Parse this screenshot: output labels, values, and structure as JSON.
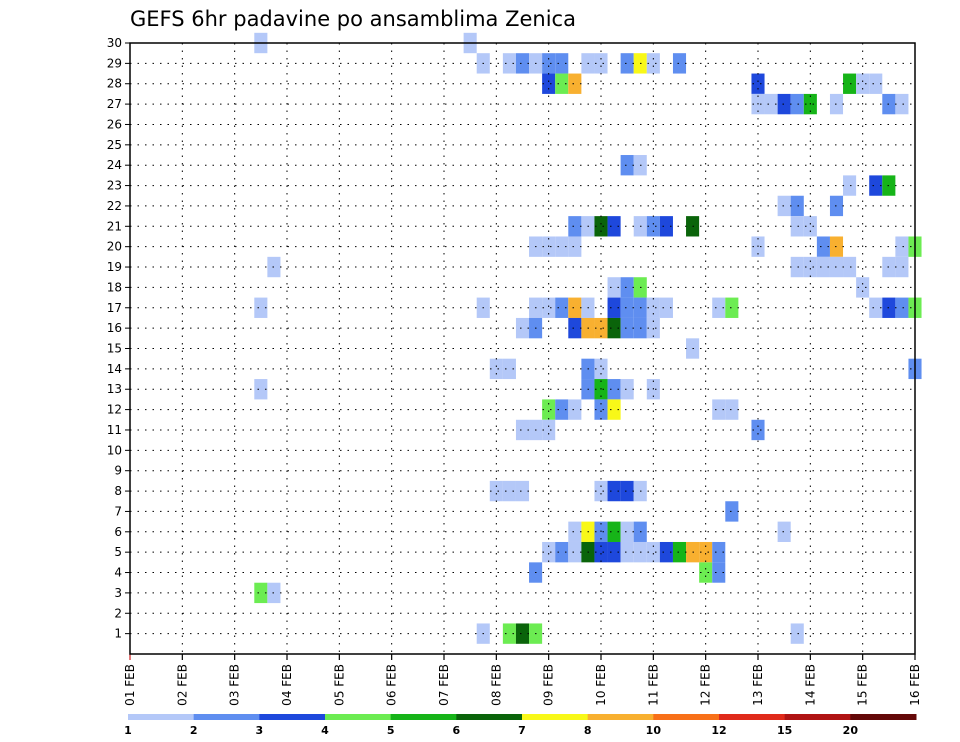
{
  "chart_data": {
    "type": "heatmap",
    "title": "GEFS 6hr padavine po ansamblima Zenica",
    "xlabel": "",
    "ylabel": "",
    "x_tick_labels": [
      "01 FEB",
      "02 FEB",
      "03 FEB",
      "04 FEB",
      "05 FEB",
      "06 FEB",
      "07 FEB",
      "08 FEB",
      "09 FEB",
      "10 FEB",
      "11 FEB",
      "12 FEB",
      "13 FEB",
      "14 FEB",
      "15 FEB",
      "16 FEB"
    ],
    "x_range_days": [
      1,
      16
    ],
    "y_tick_labels": [
      "1",
      "2",
      "3",
      "4",
      "5",
      "6",
      "7",
      "8",
      "9",
      "10",
      "11",
      "12",
      "13",
      "14",
      "15",
      "16",
      "17",
      "18",
      "19",
      "20",
      "21",
      "22",
      "23",
      "24",
      "25",
      "26",
      "27",
      "28",
      "29",
      "30"
    ],
    "y_range_members": [
      0,
      30
    ],
    "grid": true,
    "colorbar": {
      "tick_labels": [
        "1",
        "2",
        "3",
        "4",
        "5",
        "6",
        "7",
        "8",
        "10",
        "12",
        "15",
        "20"
      ],
      "colors": [
        "#b4c8f8",
        "#5f8ef0",
        "#1e48dc",
        "#6cec52",
        "#16b418",
        "#0a640a",
        "#f8f818",
        "#f8b030",
        "#f87018",
        "#e02a1a",
        "#b01414",
        "#640808"
      ]
    },
    "cells": [
      {
        "m": 30,
        "d": 3.5,
        "c": 1
      },
      {
        "m": 30,
        "d": 7.5,
        "c": 1
      },
      {
        "m": 29,
        "d": 7.75,
        "c": 1
      },
      {
        "m": 29,
        "d": 8.25,
        "c": 1
      },
      {
        "m": 29,
        "d": 8.5,
        "c": 2
      },
      {
        "m": 29,
        "d": 8.75,
        "c": 1
      },
      {
        "m": 29,
        "d": 9.0,
        "c": 2
      },
      {
        "m": 29,
        "d": 9.25,
        "c": 2
      },
      {
        "m": 29,
        "d": 9.75,
        "c": 1
      },
      {
        "m": 29,
        "d": 10.0,
        "c": 1
      },
      {
        "m": 29,
        "d": 10.5,
        "c": 2
      },
      {
        "m": 29,
        "d": 10.75,
        "c": 7
      },
      {
        "m": 29,
        "d": 11.0,
        "c": 1
      },
      {
        "m": 29,
        "d": 11.5,
        "c": 2
      },
      {
        "m": 28,
        "d": 9.0,
        "c": 3
      },
      {
        "m": 28,
        "d": 9.25,
        "c": 4
      },
      {
        "m": 28,
        "d": 9.5,
        "c": 8
      },
      {
        "m": 28,
        "d": 13.0,
        "c": 3
      },
      {
        "m": 28,
        "d": 14.75,
        "c": 5
      },
      {
        "m": 28,
        "d": 15.0,
        "c": 1
      },
      {
        "m": 28,
        "d": 15.25,
        "c": 1
      },
      {
        "m": 27,
        "d": 13.0,
        "c": 1
      },
      {
        "m": 27,
        "d": 13.25,
        "c": 1
      },
      {
        "m": 27,
        "d": 13.5,
        "c": 3
      },
      {
        "m": 27,
        "d": 13.75,
        "c": 2
      },
      {
        "m": 27,
        "d": 14.0,
        "c": 5
      },
      {
        "m": 27,
        "d": 14.5,
        "c": 1
      },
      {
        "m": 27,
        "d": 15.5,
        "c": 2
      },
      {
        "m": 27,
        "d": 15.75,
        "c": 1
      },
      {
        "m": 24,
        "d": 10.5,
        "c": 2
      },
      {
        "m": 24,
        "d": 10.75,
        "c": 1
      },
      {
        "m": 23,
        "d": 14.75,
        "c": 1
      },
      {
        "m": 23,
        "d": 15.25,
        "c": 3
      },
      {
        "m": 23,
        "d": 15.5,
        "c": 5
      },
      {
        "m": 22,
        "d": 13.5,
        "c": 1
      },
      {
        "m": 22,
        "d": 13.75,
        "c": 2
      },
      {
        "m": 22,
        "d": 14.5,
        "c": 2
      },
      {
        "m": 21,
        "d": 9.5,
        "c": 2
      },
      {
        "m": 21,
        "d": 9.75,
        "c": 1
      },
      {
        "m": 21,
        "d": 10.0,
        "c": 6
      },
      {
        "m": 21,
        "d": 10.25,
        "c": 3
      },
      {
        "m": 21,
        "d": 10.75,
        "c": 1
      },
      {
        "m": 21,
        "d": 11.0,
        "c": 2
      },
      {
        "m": 21,
        "d": 11.25,
        "c": 3
      },
      {
        "m": 21,
        "d": 11.75,
        "c": 6
      },
      {
        "m": 21,
        "d": 13.75,
        "c": 1
      },
      {
        "m": 21,
        "d": 14.0,
        "c": 1
      },
      {
        "m": 20,
        "d": 8.75,
        "c": 1
      },
      {
        "m": 20,
        "d": 9.0,
        "c": 1
      },
      {
        "m": 20,
        "d": 9.25,
        "c": 1
      },
      {
        "m": 20,
        "d": 9.5,
        "c": 1
      },
      {
        "m": 20,
        "d": 13.0,
        "c": 1
      },
      {
        "m": 20,
        "d": 14.25,
        "c": 2
      },
      {
        "m": 20,
        "d": 14.5,
        "c": 8
      },
      {
        "m": 20,
        "d": 15.75,
        "c": 1
      },
      {
        "m": 20,
        "d": 16.0,
        "c": 4
      },
      {
        "m": 19,
        "d": 3.75,
        "c": 1
      },
      {
        "m": 19,
        "d": 13.75,
        "c": 1
      },
      {
        "m": 19,
        "d": 14.0,
        "c": 1
      },
      {
        "m": 19,
        "d": 14.25,
        "c": 1
      },
      {
        "m": 19,
        "d": 14.5,
        "c": 1
      },
      {
        "m": 19,
        "d": 14.75,
        "c": 1
      },
      {
        "m": 19,
        "d": 15.5,
        "c": 1
      },
      {
        "m": 19,
        "d": 15.75,
        "c": 1
      },
      {
        "m": 18,
        "d": 10.25,
        "c": 1
      },
      {
        "m": 18,
        "d": 10.5,
        "c": 2
      },
      {
        "m": 18,
        "d": 10.75,
        "c": 4
      },
      {
        "m": 18,
        "d": 15.0,
        "c": 1
      },
      {
        "m": 17,
        "d": 3.5,
        "c": 1
      },
      {
        "m": 17,
        "d": 7.75,
        "c": 1
      },
      {
        "m": 17,
        "d": 8.75,
        "c": 1
      },
      {
        "m": 17,
        "d": 9.0,
        "c": 1
      },
      {
        "m": 17,
        "d": 9.25,
        "c": 2
      },
      {
        "m": 17,
        "d": 9.5,
        "c": 8
      },
      {
        "m": 17,
        "d": 9.75,
        "c": 1
      },
      {
        "m": 17,
        "d": 10.25,
        "c": 3
      },
      {
        "m": 17,
        "d": 10.5,
        "c": 2
      },
      {
        "m": 17,
        "d": 10.75,
        "c": 2
      },
      {
        "m": 17,
        "d": 11.0,
        "c": 1
      },
      {
        "m": 17,
        "d": 11.25,
        "c": 1
      },
      {
        "m": 17,
        "d": 12.25,
        "c": 1
      },
      {
        "m": 17,
        "d": 12.5,
        "c": 4
      },
      {
        "m": 17,
        "d": 15.25,
        "c": 1
      },
      {
        "m": 17,
        "d": 15.5,
        "c": 3
      },
      {
        "m": 17,
        "d": 15.75,
        "c": 2
      },
      {
        "m": 17,
        "d": 16.0,
        "c": 4
      },
      {
        "m": 16,
        "d": 8.5,
        "c": 1
      },
      {
        "m": 16,
        "d": 8.75,
        "c": 2
      },
      {
        "m": 16,
        "d": 9.5,
        "c": 3
      },
      {
        "m": 16,
        "d": 9.75,
        "c": 8
      },
      {
        "m": 16,
        "d": 10.0,
        "c": 8
      },
      {
        "m": 16,
        "d": 10.25,
        "c": 6
      },
      {
        "m": 16,
        "d": 10.5,
        "c": 2
      },
      {
        "m": 16,
        "d": 10.75,
        "c": 2
      },
      {
        "m": 16,
        "d": 11.0,
        "c": 1
      },
      {
        "m": 15,
        "d": 11.75,
        "c": 1
      },
      {
        "m": 14,
        "d": 8.0,
        "c": 1
      },
      {
        "m": 14,
        "d": 8.25,
        "c": 1
      },
      {
        "m": 14,
        "d": 9.75,
        "c": 2
      },
      {
        "m": 14,
        "d": 10.0,
        "c": 1
      },
      {
        "m": 14,
        "d": 16.0,
        "c": 2
      },
      {
        "m": 13,
        "d": 3.5,
        "c": 1
      },
      {
        "m": 13,
        "d": 9.75,
        "c": 2
      },
      {
        "m": 13,
        "d": 10.0,
        "c": 5
      },
      {
        "m": 13,
        "d": 10.25,
        "c": 2
      },
      {
        "m": 13,
        "d": 10.5,
        "c": 1
      },
      {
        "m": 13,
        "d": 11.0,
        "c": 1
      },
      {
        "m": 12,
        "d": 9.0,
        "c": 4
      },
      {
        "m": 12,
        "d": 9.25,
        "c": 2
      },
      {
        "m": 12,
        "d": 9.5,
        "c": 1
      },
      {
        "m": 12,
        "d": 10.0,
        "c": 2
      },
      {
        "m": 12,
        "d": 10.25,
        "c": 7
      },
      {
        "m": 12,
        "d": 12.25,
        "c": 1
      },
      {
        "m": 12,
        "d": 12.5,
        "c": 1
      },
      {
        "m": 11,
        "d": 8.5,
        "c": 1
      },
      {
        "m": 11,
        "d": 8.75,
        "c": 1
      },
      {
        "m": 11,
        "d": 9.0,
        "c": 1
      },
      {
        "m": 11,
        "d": 13.0,
        "c": 2
      },
      {
        "m": 8,
        "d": 8.0,
        "c": 1
      },
      {
        "m": 8,
        "d": 8.25,
        "c": 1
      },
      {
        "m": 8,
        "d": 8.5,
        "c": 1
      },
      {
        "m": 8,
        "d": 10.0,
        "c": 1
      },
      {
        "m": 8,
        "d": 10.25,
        "c": 3
      },
      {
        "m": 8,
        "d": 10.5,
        "c": 3
      },
      {
        "m": 8,
        "d": 10.75,
        "c": 1
      },
      {
        "m": 7,
        "d": 12.5,
        "c": 2
      },
      {
        "m": 6,
        "d": 9.5,
        "c": 1
      },
      {
        "m": 6,
        "d": 9.75,
        "c": 7
      },
      {
        "m": 6,
        "d": 10.0,
        "c": 2
      },
      {
        "m": 6,
        "d": 10.25,
        "c": 5
      },
      {
        "m": 6,
        "d": 10.5,
        "c": 1
      },
      {
        "m": 6,
        "d": 10.75,
        "c": 2
      },
      {
        "m": 6,
        "d": 13.5,
        "c": 1
      },
      {
        "m": 5,
        "d": 9.0,
        "c": 1
      },
      {
        "m": 5,
        "d": 9.25,
        "c": 2
      },
      {
        "m": 5,
        "d": 9.5,
        "c": 1
      },
      {
        "m": 5,
        "d": 9.75,
        "c": 6
      },
      {
        "m": 5,
        "d": 10.0,
        "c": 3
      },
      {
        "m": 5,
        "d": 10.25,
        "c": 3
      },
      {
        "m": 5,
        "d": 10.5,
        "c": 1
      },
      {
        "m": 5,
        "d": 10.75,
        "c": 1
      },
      {
        "m": 5,
        "d": 11.0,
        "c": 1
      },
      {
        "m": 5,
        "d": 11.25,
        "c": 3
      },
      {
        "m": 5,
        "d": 11.5,
        "c": 5
      },
      {
        "m": 5,
        "d": 11.75,
        "c": 8
      },
      {
        "m": 5,
        "d": 12.0,
        "c": 8
      },
      {
        "m": 5,
        "d": 12.25,
        "c": 2
      },
      {
        "m": 4,
        "d": 8.75,
        "c": 2
      },
      {
        "m": 4,
        "d": 12.0,
        "c": 4
      },
      {
        "m": 4,
        "d": 12.25,
        "c": 2
      },
      {
        "m": 3,
        "d": 3.5,
        "c": 4
      },
      {
        "m": 3,
        "d": 3.75,
        "c": 1
      },
      {
        "m": 1,
        "d": 7.75,
        "c": 1
      },
      {
        "m": 1,
        "d": 8.25,
        "c": 4
      },
      {
        "m": 1,
        "d": 8.5,
        "c": 6
      },
      {
        "m": 1,
        "d": 8.75,
        "c": 4
      },
      {
        "m": 1,
        "d": 13.75,
        "c": 1
      }
    ]
  }
}
